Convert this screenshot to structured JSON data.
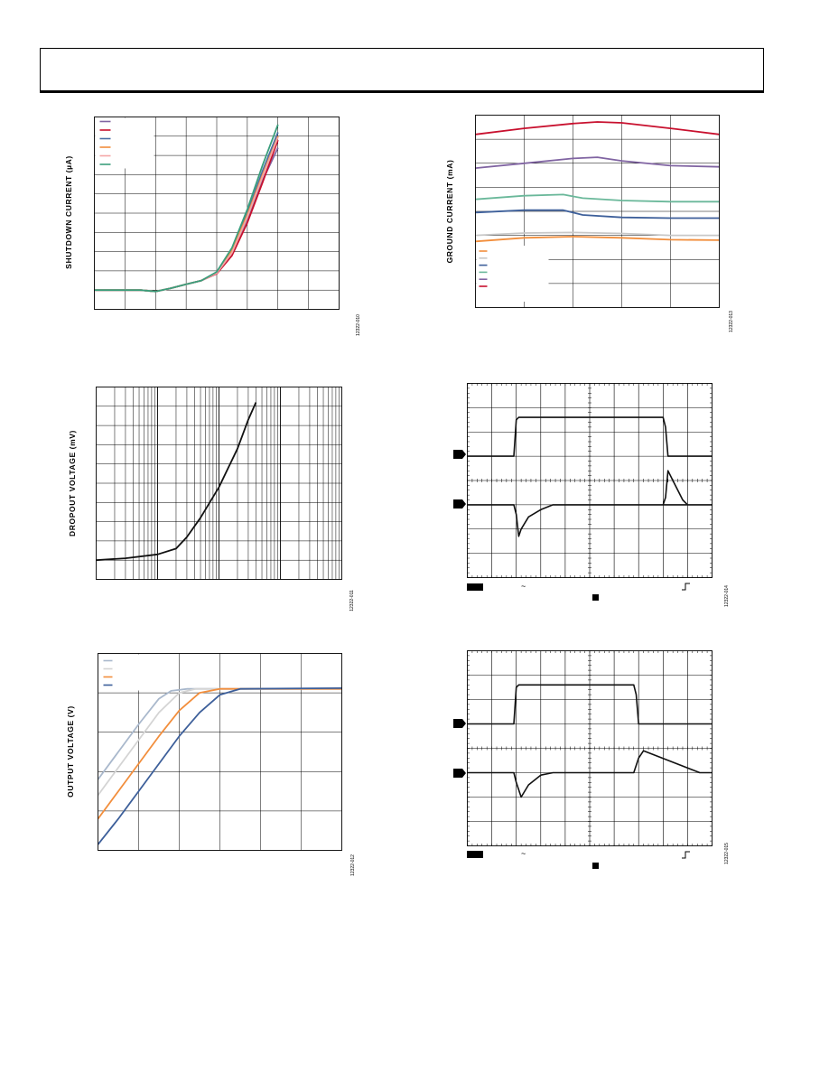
{
  "header": {
    "title": ""
  },
  "chart_data": [
    {
      "id": "shutdown",
      "type": "line",
      "ylabel": "SHUTDOWN CURRENT (µA)",
      "xlim": [
        0,
        8
      ],
      "ylim": [
        0,
        10
      ],
      "grid": true,
      "legend_position": "top-left",
      "figure_id": "12322-010",
      "series": [
        {
          "color": "#8064a2",
          "points": [
            [
              0,
              1
            ],
            [
              1,
              1
            ],
            [
              1.5,
              1
            ],
            [
              2,
              0.93
            ],
            [
              2.5,
              1.1
            ],
            [
              3,
              1.3
            ],
            [
              3.5,
              1.5
            ],
            [
              4,
              1.9
            ],
            [
              4.5,
              3
            ],
            [
              5,
              4.7
            ],
            [
              5.5,
              6.7
            ],
            [
              6,
              8.4
            ]
          ]
        },
        {
          "color": "#c8102e",
          "points": [
            [
              0,
              1
            ],
            [
              1,
              1
            ],
            [
              1.5,
              1
            ],
            [
              2,
              0.93
            ],
            [
              2.5,
              1.1
            ],
            [
              3,
              1.3
            ],
            [
              3.5,
              1.5
            ],
            [
              4,
              1.85
            ],
            [
              4.5,
              2.8
            ],
            [
              5,
              4.5
            ],
            [
              5.5,
              6.6
            ],
            [
              6,
              8.8
            ]
          ]
        },
        {
          "color": "#4a6fa5",
          "points": [
            [
              0,
              1
            ],
            [
              1,
              1
            ],
            [
              1.5,
              1
            ],
            [
              2,
              0.93
            ],
            [
              2.5,
              1.1
            ],
            [
              3,
              1.3
            ],
            [
              3.5,
              1.5
            ],
            [
              4,
              1.9
            ],
            [
              4.5,
              3.1
            ],
            [
              5,
              5
            ],
            [
              5.5,
              7.2
            ],
            [
              6,
              9.2
            ]
          ]
        },
        {
          "color": "#f28e3c",
          "points": [
            [
              0,
              1
            ],
            [
              1,
              1
            ],
            [
              1.5,
              1
            ],
            [
              2,
              0.93
            ],
            [
              2.5,
              1.1
            ],
            [
              3,
              1.3
            ],
            [
              3.5,
              1.5
            ],
            [
              4,
              1.9
            ],
            [
              4.5,
              3.05
            ],
            [
              5,
              4.9
            ],
            [
              5.5,
              7
            ],
            [
              6,
              9
            ]
          ]
        },
        {
          "color": "#f4a6a6",
          "points": [
            [
              0,
              1
            ],
            [
              1,
              1
            ],
            [
              1.5,
              1
            ],
            [
              2,
              0.93
            ],
            [
              2.5,
              1.1
            ],
            [
              3,
              1.3
            ],
            [
              3.5,
              1.5
            ],
            [
              4,
              1.88
            ],
            [
              4.5,
              2.95
            ],
            [
              5,
              4.8
            ],
            [
              5.5,
              6.9
            ],
            [
              6,
              8.95
            ]
          ]
        },
        {
          "color": "#3a9e7c",
          "points": [
            [
              0,
              1
            ],
            [
              1,
              1
            ],
            [
              1.5,
              1
            ],
            [
              2,
              0.93
            ],
            [
              2.5,
              1.1
            ],
            [
              3,
              1.3
            ],
            [
              3.5,
              1.5
            ],
            [
              4,
              1.95
            ],
            [
              4.5,
              3.2
            ],
            [
              5,
              5.2
            ],
            [
              5.5,
              7.5
            ],
            [
              6,
              9.6
            ]
          ]
        }
      ]
    },
    {
      "id": "ground",
      "type": "line",
      "ylabel": "GROUND CURRENT (mA)",
      "xlim": [
        0,
        5
      ],
      "ylim": [
        0,
        8
      ],
      "grid": true,
      "legend_position": "bottom-left",
      "figure_id": "12322-013",
      "series": [
        {
          "color": "#c8102e",
          "points": [
            [
              0,
              7.2
            ],
            [
              1,
              7.45
            ],
            [
              2,
              7.65
            ],
            [
              2.5,
              7.72
            ],
            [
              3,
              7.68
            ],
            [
              4,
              7.45
            ],
            [
              5,
              7.2
            ]
          ]
        },
        {
          "color": "#8064a2",
          "points": [
            [
              0,
              5.8
            ],
            [
              1,
              6.0
            ],
            [
              2,
              6.2
            ],
            [
              2.5,
              6.25
            ],
            [
              3,
              6.1
            ],
            [
              4,
              5.9
            ],
            [
              5,
              5.85
            ]
          ]
        },
        {
          "color": "#6ab89a",
          "points": [
            [
              0,
              4.5
            ],
            [
              1,
              4.65
            ],
            [
              1.8,
              4.7
            ],
            [
              2.2,
              4.55
            ],
            [
              3,
              4.45
            ],
            [
              4,
              4.4
            ],
            [
              5,
              4.4
            ]
          ]
        },
        {
          "color": "#3d5f9a",
          "points": [
            [
              0,
              3.95
            ],
            [
              1,
              4.05
            ],
            [
              1.8,
              4.05
            ],
            [
              2.2,
              3.85
            ],
            [
              3,
              3.75
            ],
            [
              4,
              3.72
            ],
            [
              5,
              3.72
            ]
          ]
        },
        {
          "color": "#c8c8c8",
          "points": [
            [
              0,
              3.0
            ],
            [
              1,
              3.1
            ],
            [
              2,
              3.12
            ],
            [
              3,
              3.08
            ],
            [
              4,
              3.0
            ],
            [
              5,
              3.0
            ]
          ]
        },
        {
          "color": "#f28e3c",
          "points": [
            [
              0,
              2.75
            ],
            [
              1,
              2.9
            ],
            [
              2,
              2.95
            ],
            [
              3,
              2.9
            ],
            [
              4,
              2.82
            ],
            [
              5,
              2.8
            ]
          ]
        }
      ]
    },
    {
      "id": "dropout",
      "type": "line",
      "ylabel": "DROPOUT VOLTAGE (mV)",
      "xscale": "log",
      "xlim": [
        0.1,
        1000
      ],
      "ylim": [
        0,
        10
      ],
      "grid": true,
      "figure_id": "12322-011",
      "series": [
        {
          "color": "#111111",
          "points": [
            [
              0.1,
              1.0
            ],
            [
              0.3,
              1.1
            ],
            [
              1,
              1.3
            ],
            [
              2,
              1.6
            ],
            [
              3,
              2.2
            ],
            [
              5,
              3.2
            ],
            [
              10,
              4.8
            ],
            [
              20,
              6.8
            ],
            [
              30,
              8.3
            ],
            [
              40,
              9.2
            ]
          ]
        }
      ]
    },
    {
      "id": "outvolt",
      "type": "line",
      "ylabel": "OUTPUT VOLTAGE (V)",
      "xlim": [
        0,
        6
      ],
      "ylim": [
        0,
        5
      ],
      "grid": true,
      "legend_position": "top-left",
      "figure_id": "12322-012",
      "series": [
        {
          "color": "#a9b8cc",
          "points": [
            [
              0,
              1.8
            ],
            [
              0.5,
              2.5
            ],
            [
              1,
              3.2
            ],
            [
              1.5,
              3.85
            ],
            [
              1.8,
              4.05
            ],
            [
              2.2,
              4.1
            ],
            [
              6,
              4.1
            ]
          ]
        },
        {
          "color": "#d4d4d4",
          "points": [
            [
              0,
              1.4
            ],
            [
              0.5,
              2.1
            ],
            [
              1,
              2.8
            ],
            [
              1.5,
              3.5
            ],
            [
              2,
              4.0
            ],
            [
              2.4,
              4.1
            ],
            [
              6,
              4.1
            ]
          ]
        },
        {
          "color": "#f28e3c",
          "points": [
            [
              0,
              0.8
            ],
            [
              0.5,
              1.5
            ],
            [
              1,
              2.2
            ],
            [
              1.5,
              2.9
            ],
            [
              2,
              3.55
            ],
            [
              2.5,
              4.0
            ],
            [
              3,
              4.1
            ],
            [
              6,
              4.1
            ]
          ]
        },
        {
          "color": "#3d5f9a",
          "points": [
            [
              0,
              0.15
            ],
            [
              0.5,
              0.8
            ],
            [
              1,
              1.5
            ],
            [
              1.5,
              2.2
            ],
            [
              2,
              2.9
            ],
            [
              2.5,
              3.5
            ],
            [
              3,
              3.95
            ],
            [
              3.5,
              4.1
            ],
            [
              6,
              4.12
            ]
          ]
        }
      ]
    },
    {
      "id": "scope1",
      "type": "line",
      "xlim": [
        0,
        10
      ],
      "ylim": [
        0,
        8
      ],
      "grid": true,
      "figure_id": "12322-014",
      "series": [
        {
          "color": "#111111",
          "points": [
            [
              0,
              5
            ],
            [
              1.6,
              5
            ],
            [
              1.9,
              5
            ],
            [
              2.0,
              6.5
            ],
            [
              2.1,
              6.6
            ],
            [
              8.0,
              6.6
            ],
            [
              8.1,
              6.2
            ],
            [
              8.2,
              5
            ],
            [
              10,
              5
            ]
          ]
        },
        {
          "color": "#111111",
          "points": [
            [
              0,
              3
            ],
            [
              1.9,
              3
            ],
            [
              2.0,
              2.6
            ],
            [
              2.1,
              1.7
            ],
            [
              2.2,
              2.0
            ],
            [
              2.5,
              2.5
            ],
            [
              3,
              2.8
            ],
            [
              3.5,
              3
            ],
            [
              10,
              3
            ],
            [
              8.0,
              3
            ],
            [
              8.1,
              3.3
            ],
            [
              8.2,
              4.4
            ],
            [
              8.4,
              4.0
            ],
            [
              8.8,
              3.2
            ],
            [
              9,
              3
            ],
            [
              10,
              3
            ]
          ]
        }
      ]
    },
    {
      "id": "scope2",
      "type": "line",
      "xlim": [
        0,
        10
      ],
      "ylim": [
        0,
        8
      ],
      "grid": true,
      "figure_id": "12322-015",
      "series": [
        {
          "color": "#111111",
          "points": [
            [
              0,
              5
            ],
            [
              1.9,
              5
            ],
            [
              2.0,
              6.5
            ],
            [
              2.1,
              6.6
            ],
            [
              6.8,
              6.6
            ],
            [
              6.9,
              6.2
            ],
            [
              7.0,
              5
            ],
            [
              10,
              5
            ]
          ]
        },
        {
          "color": "#111111",
          "points": [
            [
              0,
              3
            ],
            [
              1.9,
              3
            ],
            [
              2.0,
              2.6
            ],
            [
              2.2,
              2.0
            ],
            [
              2.5,
              2.5
            ],
            [
              3,
              2.9
            ],
            [
              3.5,
              3
            ],
            [
              6.8,
              3
            ],
            [
              7.0,
              3.6
            ],
            [
              7.2,
              3.9
            ],
            [
              9.5,
              3.0
            ],
            [
              10,
              3
            ]
          ]
        }
      ]
    }
  ]
}
